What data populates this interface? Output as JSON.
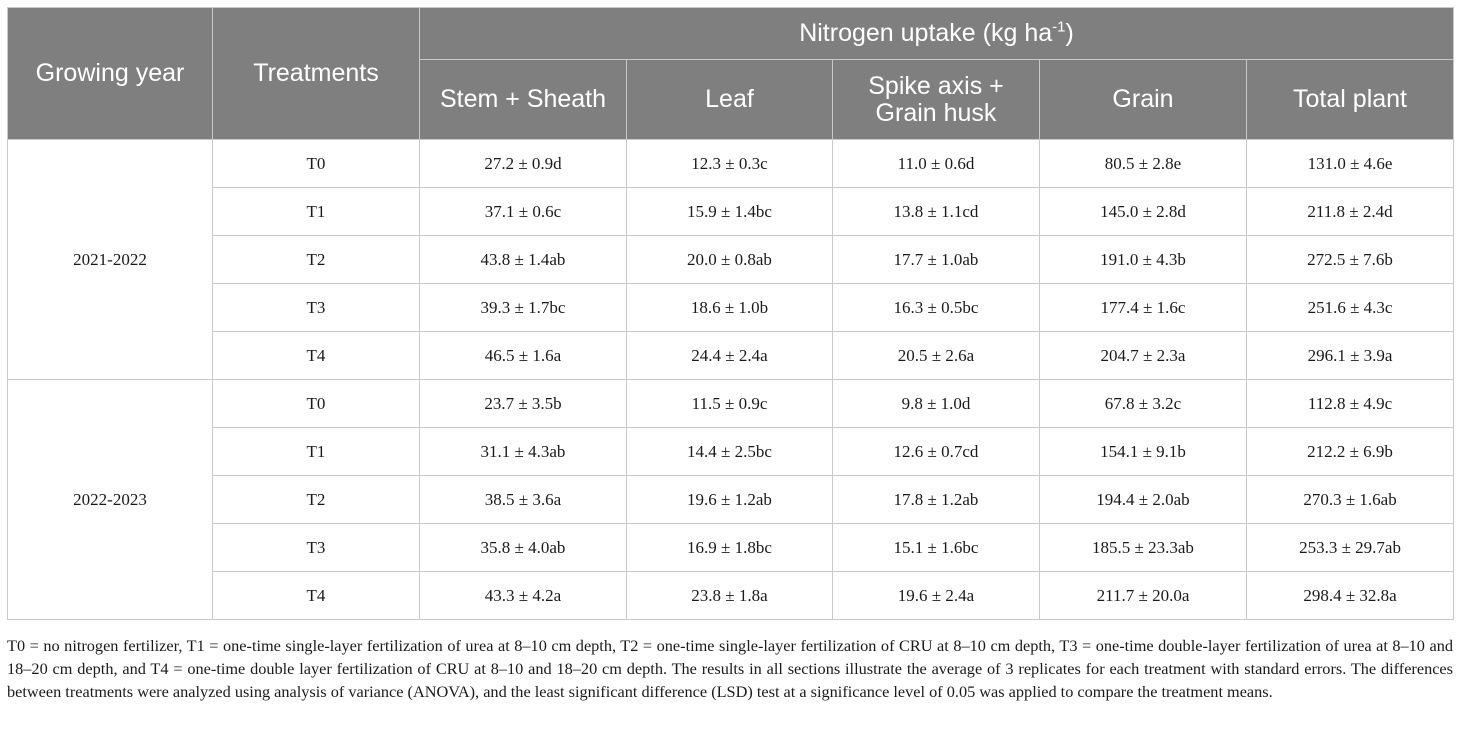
{
  "table": {
    "header": {
      "growing_year": "Growing year",
      "treatments": "Treatments",
      "group_title": "Nitrogen uptake (kg ha",
      "group_sup": "-1",
      "group_close": ")",
      "columns": [
        "Stem + Sheath",
        "Leaf",
        "Spike axis +",
        "Grain husk",
        "Grain",
        "Total plant"
      ]
    },
    "groups": [
      {
        "year": "2021-2022",
        "rows": [
          {
            "t": "T0",
            "stem": "27.2 ± 0.9d",
            "leaf": "12.3 ± 0.3c",
            "spike": "11.0 ± 0.6d",
            "grain": "80.5 ± 2.8e",
            "total": "131.0 ± 4.6e"
          },
          {
            "t": "T1",
            "stem": "37.1 ± 0.6c",
            "leaf": "15.9 ± 1.4bc",
            "spike": "13.8 ± 1.1cd",
            "grain": "145.0 ± 2.8d",
            "total": "211.8 ± 2.4d"
          },
          {
            "t": "T2",
            "stem": "43.8 ± 1.4ab",
            "leaf": "20.0 ± 0.8ab",
            "spike": "17.7 ± 1.0ab",
            "grain": "191.0 ± 4.3b",
            "total": "272.5 ± 7.6b"
          },
          {
            "t": "T3",
            "stem": "39.3 ± 1.7bc",
            "leaf": "18.6 ± 1.0b",
            "spike": "16.3 ± 0.5bc",
            "grain": "177.4 ± 1.6c",
            "total": "251.6 ± 4.3c"
          },
          {
            "t": "T4",
            "stem": "46.5 ± 1.6a",
            "leaf": "24.4 ± 2.4a",
            "spike": "20.5 ± 2.6a",
            "grain": "204.7 ± 2.3a",
            "total": "296.1 ± 3.9a"
          }
        ]
      },
      {
        "year": "2022-2023",
        "rows": [
          {
            "t": "T0",
            "stem": "23.7 ± 3.5b",
            "leaf": "11.5 ± 0.9c",
            "spike": "9.8 ± 1.0d",
            "grain": "67.8 ± 3.2c",
            "total": "112.8 ± 4.9c"
          },
          {
            "t": "T1",
            "stem": "31.1 ± 4.3ab",
            "leaf": "14.4 ± 2.5bc",
            "spike": "12.6 ± 0.7cd",
            "grain": "154.1 ± 9.1b",
            "total": "212.2 ± 6.9b"
          },
          {
            "t": "T2",
            "stem": "38.5 ± 3.6a",
            "leaf": "19.6 ± 1.2ab",
            "spike": "17.8 ± 1.2ab",
            "grain": "194.4 ± 2.0ab",
            "total": "270.3 ± 1.6ab"
          },
          {
            "t": "T3",
            "stem": "35.8 ± 4.0ab",
            "leaf": "16.9 ± 1.8bc",
            "spike": "15.1 ± 1.6bc",
            "grain": "185.5 ± 23.3ab",
            "total": "253.3 ± 29.7ab"
          },
          {
            "t": "T4",
            "stem": "43.3 ± 4.2a",
            "leaf": "23.8 ± 1.8a",
            "spike": "19.6 ± 2.4a",
            "grain": "211.7 ± 20.0a",
            "total": "298.4 ± 32.8a"
          }
        ]
      }
    ]
  },
  "footnote": "T0 = no nitrogen fertilizer, T1 = one-time single-layer fertilization of urea at 8–10 cm depth, T2 = one-time single-layer fertilization of CRU at 8–10 cm depth, T3 = one-time double-layer fertilization of urea at 8–10 and 18–20 cm depth, and T4 = one-time double layer fertilization of CRU at 8–10 and 18–20 cm depth. The results in all sections illustrate the average of 3 replicates for each treatment with standard errors. The differences between treatments were analyzed using analysis of variance (ANOVA), and the least significant difference (LSD) test at a significance level of 0.05 was applied to compare the treatment means."
}
